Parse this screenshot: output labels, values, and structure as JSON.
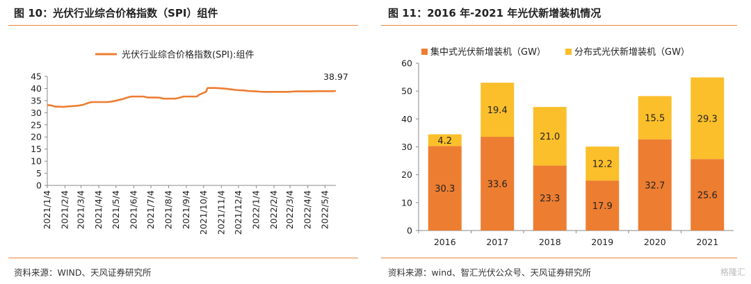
{
  "left": {
    "title": "图 10：光伏行业综合价格指数（SPI）组件",
    "source": "资料来源：WIND、天风证券研究所"
  },
  "right": {
    "title": "图 11：2016 年-2021 年光伏新增装机情况",
    "source": "资料来源：wind、智汇光伏公众号、天风证券研究所"
  },
  "watermark": "格隆汇",
  "chart_data": [
    {
      "type": "line",
      "title": "",
      "legend": "光伏行业综合价格指数(SPI):组件",
      "legend_position": "top",
      "x_tick_labels": [
        "2021/1/4",
        "2021/2/4",
        "2021/3/4",
        "2021/4/4",
        "2021/5/4",
        "2021/6/4",
        "2021/7/4",
        "2021/8/4",
        "2021/9/4",
        "2021/10/4",
        "2021/11/4",
        "2021/12/4",
        "2022/1/4",
        "2022/2/4",
        "2022/3/4",
        "2022/4/4",
        "2022/5/4"
      ],
      "y_ticks": [
        0,
        5,
        10,
        15,
        20,
        25,
        30,
        35,
        40,
        45
      ],
      "ylim": [
        0,
        45
      ],
      "grid": false,
      "end_label": "38.97",
      "series": [
        {
          "name": "光伏行业综合价格指数(SPI):组件",
          "color": "#ed7d31",
          "x": [
            "2021/1/4",
            "2021/1/11",
            "2021/1/18",
            "2021/1/25",
            "2021/2/1",
            "2021/2/8",
            "2021/2/22",
            "2021/3/1",
            "2021/3/8",
            "2021/3/15",
            "2021/3/22",
            "2021/3/29",
            "2021/4/5",
            "2021/4/12",
            "2021/4/19",
            "2021/4/26",
            "2021/5/3",
            "2021/5/10",
            "2021/5/17",
            "2021/5/24",
            "2021/5/31",
            "2021/6/7",
            "2021/6/14",
            "2021/6/21",
            "2021/6/28",
            "2021/7/5",
            "2021/7/12",
            "2021/7/19",
            "2021/7/26",
            "2021/8/2",
            "2021/8/9",
            "2021/8/16",
            "2021/8/23",
            "2021/8/30",
            "2021/9/6",
            "2021/9/13",
            "2021/9/22",
            "2021/9/27",
            "2021/10/8",
            "2021/10/11",
            "2021/10/18",
            "2021/10/25",
            "2021/11/1",
            "2021/11/8",
            "2021/11/15",
            "2021/11/22",
            "2021/11/29",
            "2021/12/6",
            "2021/12/13",
            "2021/12/20",
            "2021/12/27",
            "2022/1/4",
            "2022/1/10",
            "2022/1/17",
            "2022/1/24",
            "2022/2/7",
            "2022/2/14",
            "2022/2/21",
            "2022/2/28",
            "2022/3/7",
            "2022/3/14",
            "2022/3/21",
            "2022/3/28",
            "2022/4/4",
            "2022/4/11",
            "2022/4/18",
            "2022/4/25",
            "2022/5/2",
            "2022/5/9",
            "2022/5/16",
            "2022/5/23"
          ],
          "values": [
            33.2,
            33.0,
            32.5,
            32.5,
            32.4,
            32.6,
            32.8,
            33.0,
            33.3,
            33.9,
            34.4,
            34.4,
            34.4,
            34.4,
            34.4,
            34.6,
            34.9,
            35.3,
            35.7,
            36.3,
            36.7,
            36.7,
            36.7,
            36.7,
            36.3,
            36.3,
            36.3,
            36.2,
            35.8,
            35.8,
            35.8,
            35.8,
            36.2,
            36.7,
            36.7,
            36.7,
            36.7,
            37.5,
            38.6,
            40.2,
            40.2,
            40.2,
            40.1,
            40.0,
            39.8,
            39.6,
            39.4,
            39.3,
            39.2,
            39.0,
            38.9,
            38.8,
            38.7,
            38.6,
            38.6,
            38.6,
            38.6,
            38.6,
            38.6,
            38.7,
            38.8,
            38.8,
            38.8,
            38.8,
            38.8,
            38.9,
            38.9,
            38.9,
            38.9,
            38.9,
            38.97
          ]
        }
      ]
    },
    {
      "type": "bar",
      "stacked": true,
      "title": "",
      "legend_position": "top",
      "categories": [
        "2016",
        "2017",
        "2018",
        "2019",
        "2020",
        "2021"
      ],
      "y_ticks": [
        0,
        10,
        20,
        30,
        40,
        50,
        60
      ],
      "ylim": [
        0,
        60
      ],
      "grid": false,
      "series": [
        {
          "name": "集中式光伏新增装机（GW）",
          "color": "#ed7d31",
          "values": [
            30.3,
            33.6,
            23.3,
            17.9,
            32.7,
            25.6
          ],
          "labels": [
            "30.3",
            "33.6",
            "23.3",
            "17.9",
            "32.7",
            "25.6"
          ]
        },
        {
          "name": "分布式光伏新增装机（GW）",
          "color": "#fbbf2b",
          "values": [
            4.2,
            19.4,
            21.0,
            12.2,
            15.5,
            29.3
          ],
          "labels": [
            "4.2",
            "19.4",
            "21.0",
            "12.2",
            "15.5",
            "29.3"
          ]
        }
      ]
    }
  ]
}
